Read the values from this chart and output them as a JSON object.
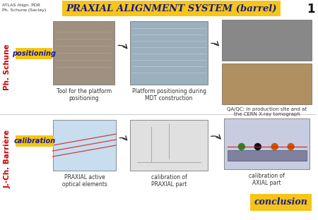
{
  "slide_bg": "#ffffff",
  "title_display": "PRAXIAL ALIGNMENT SYSTEM (barrel)",
  "title_bg": "#f5c518",
  "title_color": "#1a1a8c",
  "slide_number": "1",
  "top_left_line1": "ATLAS Align. PDR",
  "top_left_line2": "Ph. Schune (Saclay)",
  "left_label1": "Ph. Schune",
  "left_label1_color": "#cc0000",
  "left_label2": "J.-Ch. Barrière",
  "left_label2_color": "#cc0000",
  "badge1_text": "positioning",
  "badge1_bg": "#f5c518",
  "badge1_color": "#1a1a8c",
  "badge2_text": "calibration",
  "badge2_bg": "#f5c518",
  "badge2_color": "#1a1a8c",
  "img1_caption": "Tool for the platform\npositioning",
  "img2_caption": "Platform positioning during\nMDT construction",
  "img3_caption": "QA/QC: in production site and at\nthe CERN X-ray tomograph",
  "img4_caption": "PRAXIAL active\noptical elements",
  "img5_caption": "calibration of\nPRAXIAL part",
  "img6_caption": "calibration of\nAXIAL part",
  "conclusion_text": "conclusion",
  "conclusion_bg": "#f5c518",
  "conclusion_color": "#1a1a8c",
  "arrow_color": "#333333",
  "divider_color": "#cccccc",
  "img1_color": "#a09080",
  "img2_color": "#9ab0bc",
  "img3a_color": "#888888",
  "img3b_color": "#b09060",
  "img4_color": "#c8dded",
  "img5_color": "#e0e0e0",
  "img6_color": "#c8cce0",
  "img6_bar_color": "#8080a0",
  "img6_laser_color": "#cc2222",
  "img4_laser_color": "#cc2222"
}
